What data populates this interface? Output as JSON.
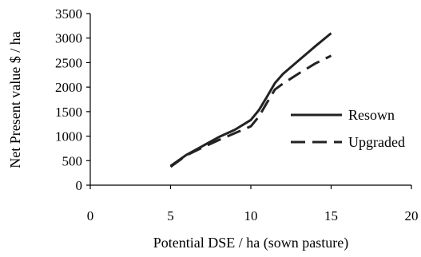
{
  "chart_data": {
    "type": "line",
    "title": "",
    "xlabel": "Potential DSE / ha (sown pasture)",
    "ylabel": "Net Present value $ / ha",
    "xlim": [
      0,
      20
    ],
    "ylim": [
      0,
      3500
    ],
    "xticks": [
      0,
      5,
      10,
      15,
      20
    ],
    "yticks": [
      0,
      500,
      1000,
      1500,
      2000,
      2500,
      3000,
      3500
    ],
    "grid": false,
    "legend_position": "right",
    "series": [
      {
        "name": "Resown",
        "style": "solid",
        "color": "#222222",
        "x": [
          5,
          6,
          7,
          8,
          9,
          10,
          10.5,
          11,
          11.5,
          12,
          13,
          14,
          15
        ],
        "y": [
          390,
          620,
          800,
          980,
          1130,
          1330,
          1530,
          1800,
          2080,
          2270,
          2550,
          2830,
          3100
        ]
      },
      {
        "name": "Upgraded",
        "style": "dashed",
        "color": "#222222",
        "x": [
          5,
          6,
          7,
          8,
          9,
          10,
          10.5,
          11,
          11.5,
          12,
          13,
          14,
          15
        ],
        "y": [
          375,
          610,
          770,
          920,
          1060,
          1200,
          1400,
          1680,
          1950,
          2070,
          2280,
          2480,
          2640
        ]
      }
    ]
  }
}
